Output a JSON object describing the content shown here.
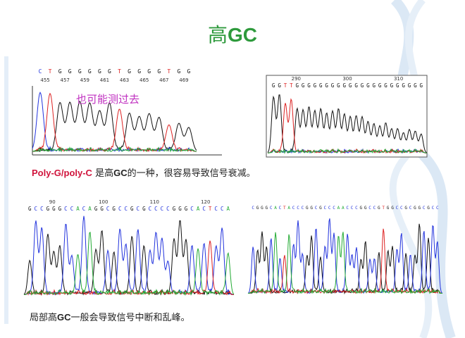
{
  "title": {
    "plain": "高",
    "bold": "GC"
  },
  "panels": [
    {
      "sequence": [
        "C",
        "T",
        "G",
        "G",
        "G",
        "G",
        "G",
        "G",
        "T",
        "G",
        "G",
        "G",
        "G",
        "T",
        "G",
        "G"
      ],
      "positions": [
        "455",
        "457",
        "459",
        "461",
        "463",
        "465",
        "467",
        "469"
      ],
      "note": "也可能测过去"
    },
    {
      "sequence": [
        "G",
        "G",
        "T",
        "T",
        "G",
        "G",
        "G",
        "G",
        "G",
        "G",
        "G",
        "G",
        "G",
        "G",
        "G",
        "G",
        "G",
        "G",
        "G",
        "G",
        "G",
        "G",
        "G",
        "G",
        "G",
        "G"
      ],
      "positions": [
        "290",
        "300",
        "310"
      ]
    },
    {
      "sequence": [
        "G",
        "C",
        "C",
        "G",
        "G",
        "G",
        "C",
        "C",
        "A",
        "C",
        "A",
        "G",
        "G",
        "C",
        "G",
        "C",
        "C",
        "G",
        "C",
        "G",
        "C",
        "C",
        "C",
        "C",
        "G",
        "G",
        "G",
        "C",
        "A",
        "C",
        "T",
        "C",
        "C",
        "A"
      ],
      "positions": [
        "90",
        "100",
        "110",
        "120"
      ]
    },
    {
      "sequence": [
        "C",
        "G",
        "G",
        "G",
        "C",
        "A",
        "C",
        "T",
        "A",
        "C",
        "C",
        "C",
        "G",
        "G",
        "C",
        "G",
        "C",
        "C",
        "C",
        "A",
        "A",
        "C",
        "C",
        "C",
        "G",
        "G",
        "C",
        "C",
        "G",
        "T",
        "G",
        "G",
        "C",
        "C",
        "G",
        "C",
        "G",
        "G",
        "C",
        "G",
        "C",
        "C"
      ]
    }
  ],
  "captions": [
    {
      "highlight": "Poly-G/poly-C",
      "text1": " 是高",
      "bold": "GC",
      "text2": "的一种，很容易导致信号衰减。"
    },
    {
      "text1": "局部高",
      "bold": "GC",
      "text2": "一般会导致信号中断和乱峰。"
    }
  ]
}
